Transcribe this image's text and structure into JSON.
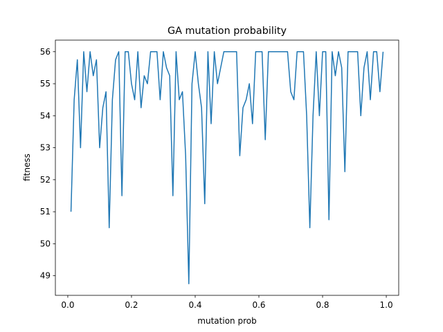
{
  "chart_data": {
    "type": "line",
    "title": "GA mutation probability",
    "xlabel": "mutation prob",
    "ylabel": "fitness",
    "x": [
      0.01,
      0.02,
      0.03,
      0.04,
      0.05,
      0.06,
      0.07,
      0.08,
      0.09,
      0.1,
      0.11,
      0.12,
      0.13,
      0.14,
      0.15,
      0.16,
      0.17,
      0.18,
      0.19,
      0.2,
      0.21,
      0.22,
      0.23,
      0.24,
      0.25,
      0.26,
      0.27,
      0.28,
      0.29,
      0.3,
      0.31,
      0.32,
      0.33,
      0.34,
      0.35,
      0.36,
      0.37,
      0.38,
      0.39,
      0.4,
      0.41,
      0.42,
      0.43,
      0.44,
      0.45,
      0.46,
      0.47,
      0.48,
      0.49,
      0.5,
      0.51,
      0.52,
      0.53,
      0.54,
      0.55,
      0.56,
      0.57,
      0.58,
      0.59,
      0.6,
      0.61,
      0.62,
      0.63,
      0.64,
      0.65,
      0.66,
      0.67,
      0.68,
      0.69,
      0.7,
      0.71,
      0.72,
      0.73,
      0.74,
      0.75,
      0.76,
      0.77,
      0.78,
      0.79,
      0.8,
      0.81,
      0.82,
      0.83,
      0.84,
      0.85,
      0.86,
      0.87,
      0.88,
      0.89,
      0.9,
      0.91,
      0.92,
      0.93,
      0.94,
      0.95,
      0.96,
      0.97,
      0.98,
      0.99
    ],
    "series": [
      {
        "name": "fitness",
        "color": "#1f77b4",
        "values": [
          51,
          54.5,
          55.75,
          53,
          56,
          54.75,
          56,
          55.25,
          55.75,
          53,
          54.25,
          54.75,
          50.5,
          54.5,
          55.75,
          56,
          51.5,
          56,
          56,
          55,
          54.5,
          56,
          54.25,
          55.25,
          55,
          56,
          56,
          56,
          54.5,
          56,
          55.5,
          55.25,
          51.5,
          56,
          54.5,
          54.75,
          52.75,
          48.75,
          55,
          56,
          55,
          54.25,
          51.25,
          56,
          53.75,
          56,
          55,
          55.5,
          56,
          56,
          56,
          56,
          56,
          52.75,
          54.25,
          54.5,
          55,
          53.75,
          56,
          56,
          56,
          53.25,
          56,
          56,
          56,
          56,
          56,
          56,
          56,
          54.75,
          54.5,
          56,
          56,
          56,
          54,
          50.5,
          54,
          56,
          54,
          56,
          56,
          50.75,
          56,
          55.25,
          56,
          55.5,
          52.25,
          56,
          56,
          56,
          56,
          54,
          55.5,
          56,
          54.5,
          56,
          56,
          54.75,
          56
        ]
      }
    ],
    "xlim": [
      -0.039,
      1.039
    ],
    "xticks": [
      {
        "value": 0,
        "label": "0.0"
      },
      0.2,
      0.4,
      0.6,
      0.8,
      {
        "value": 1,
        "label": "1.0"
      }
    ],
    "ylim": [
      48.3875,
      56.3625
    ],
    "yticks": [
      49,
      50,
      51,
      52,
      53,
      54,
      55,
      56
    ],
    "grid": false
  }
}
